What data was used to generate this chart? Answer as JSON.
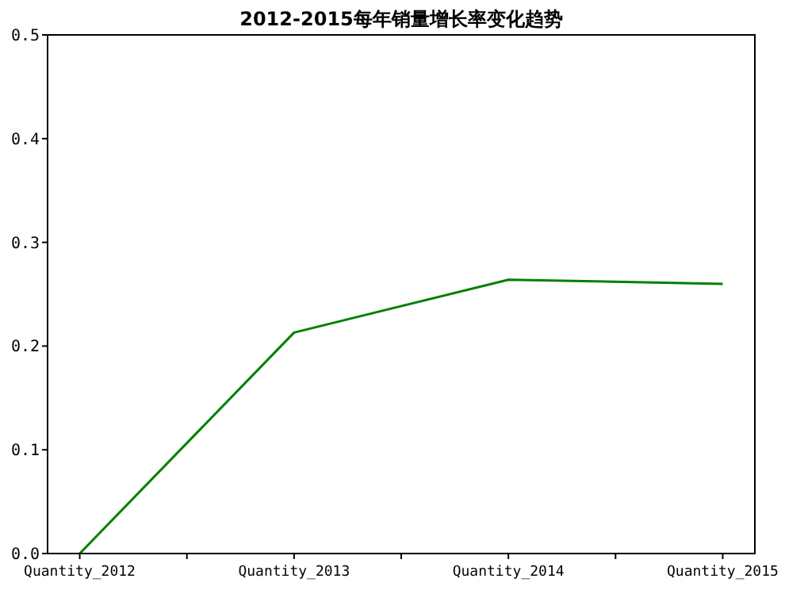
{
  "chart_data": {
    "type": "line",
    "title": "2012-2015每年销量增长率变化趋势",
    "categories": [
      "Quantity_2012",
      "Quantity_2013",
      "Quantity_2014",
      "Quantity_2015"
    ],
    "series": [
      {
        "color": "#008000",
        "values": [
          0,
          0.213,
          0.264,
          0.26
        ]
      }
    ],
    "ylim": [
      0,
      0.5
    ],
    "yticks": [
      {
        "value": 0,
        "label": "0.0"
      },
      {
        "value": 0.1,
        "label": "0.1"
      },
      {
        "value": 0.2,
        "label": "0.2"
      },
      {
        "value": 0.3,
        "label": "0.3"
      },
      {
        "value": 0.4,
        "label": "0.4"
      },
      {
        "value": 0.5,
        "label": "0.5"
      }
    ],
    "grid": false
  }
}
